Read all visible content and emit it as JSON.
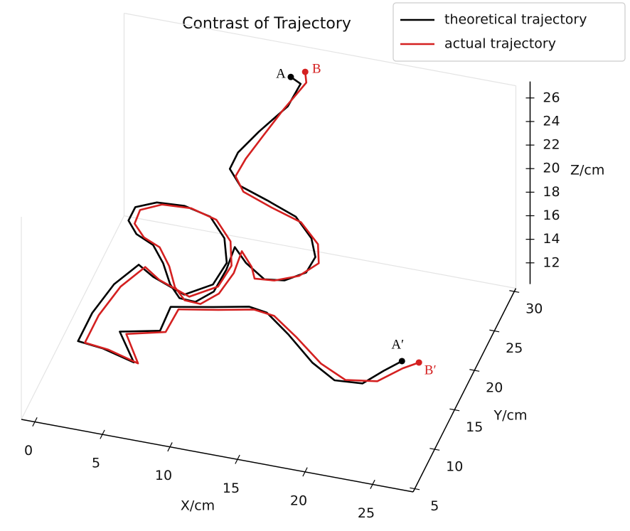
{
  "chart_data": {
    "type": "line3d",
    "title": "Contrast of Trajectory",
    "xlabel": "X/cm",
    "ylabel": "Y/cm",
    "zlabel": "Z/cm",
    "xlim": [
      -1,
      28
    ],
    "ylim": [
      4.6,
      30.4
    ],
    "zlim": [
      10.2,
      27.4
    ],
    "xticks": [
      0,
      5,
      10,
      15,
      20,
      25
    ],
    "yticks": [
      5,
      10,
      15,
      20,
      25,
      30
    ],
    "zticks": [
      12,
      14,
      16,
      18,
      20,
      22,
      24,
      26
    ],
    "legend": "upper right",
    "series": [
      {
        "name": "theoretical trajectory",
        "color": "#000000",
        "start_label": "A",
        "end_label": "A′",
        "x": [
          11.9,
          12.6,
          12.3,
          10.8,
          9.7,
          9.3,
          10.2,
          12.3,
          14.6,
          16.2,
          16.9,
          16.6,
          15.2,
          13.8,
          12.0,
          10.7,
          10.9,
          10.8,
          9.9,
          8.7,
          7.6,
          6.4,
          5.1,
          3.6,
          2.6,
          2.6,
          3.9,
          5.9,
          8.0,
          9.7,
          10.7,
          10.5,
          8.9,
          6.2,
          4.8,
          3.8,
          3.3,
          2.9,
          4.8,
          7.0,
          5.4,
          8.5,
          8.4,
          11.3,
          13.7,
          15.1,
          16.9,
          19.1,
          20.8,
          22.4,
          23.2,
          23.9
        ],
        "y": [
          28.5,
          28.6,
          26.4,
          24.2,
          22.7,
          22.0,
          21.6,
          21.2,
          20.6,
          19.1,
          17.7,
          16.4,
          15.7,
          15.4,
          16.9,
          18.5,
          15.7,
          12.9,
          11.3,
          11.4,
          12.8,
          15.1,
          17.0,
          17.9,
          19.3,
          21.0,
          22.0,
          22.2,
          21.5,
          19.3,
          16.5,
          13.7,
          11.9,
          13.3,
          14.4,
          11.6,
          7.8,
          5.6,
          5.3,
          5.7,
          7.6,
          7.2,
          10.2,
          11.1,
          11.9,
          11.6,
          10.9,
          9.5,
          9.3,
          10.9,
          13.5,
          15.7
        ],
        "z": [
          26,
          25.5,
          25,
          24,
          23,
          22,
          21,
          20.5,
          20,
          19.5,
          19,
          18.5,
          18,
          18,
          18,
          18,
          18,
          18,
          18,
          18,
          18,
          18,
          18,
          18,
          18,
          18,
          18,
          18,
          18,
          18,
          18,
          18,
          18,
          18,
          18,
          18,
          18,
          17,
          17,
          16,
          17,
          18,
          18,
          18,
          18,
          18,
          17,
          16,
          15,
          14,
          13.5,
          13
        ]
      },
      {
        "name": "actual trajectory",
        "color": "#d42020",
        "start_label": "B",
        "end_label": "B′",
        "x": [
          12.7,
          12.9,
          12.0,
          11.2,
          10.4,
          9.9,
          10.6,
          12.8,
          15.1,
          16.8,
          17.3,
          16.2,
          14.6,
          13.2,
          12.6,
          11.4,
          11.6,
          11.3,
          10.4,
          9.2,
          8.1,
          7.0,
          5.7,
          4.3,
          3.2,
          3.1,
          4.4,
          6.5,
          8.6,
          10.3,
          11.2,
          11.0,
          9.4,
          6.8,
          5.4,
          4.4,
          3.9,
          3.5,
          5.3,
          7.4,
          6.0,
          9.0,
          9.1,
          11.8,
          14.2,
          15.8,
          17.6,
          19.8,
          21.6,
          23.4,
          24.4,
          25.1
        ],
        "y": [
          29.4,
          29.0,
          26.0,
          24.0,
          22.3,
          21.4,
          21.0,
          20.6,
          20.2,
          18.7,
          17.2,
          16.0,
          15.2,
          15.0,
          16.3,
          17.9,
          15.2,
          12.5,
          10.9,
          11.0,
          12.3,
          14.6,
          16.6,
          17.4,
          18.8,
          20.5,
          21.6,
          21.8,
          21.0,
          18.8,
          16.0,
          13.3,
          11.5,
          12.8,
          14.0,
          11.2,
          7.4,
          5.3,
          5.0,
          5.4,
          7.2,
          6.9,
          9.8,
          10.6,
          11.4,
          11.1,
          10.5,
          9.3,
          9.3,
          11.2,
          14.2,
          15.9
        ],
        "z": [
          26,
          25.4,
          24.8,
          23.9,
          22.9,
          21.9,
          21,
          20.4,
          19.9,
          19.4,
          18.9,
          18.4,
          18.2,
          18.2,
          18.2,
          18.2,
          18.2,
          18.2,
          18.2,
          18.2,
          18.2,
          18.2,
          18.2,
          18.2,
          18.2,
          18.2,
          18.2,
          18.2,
          18.2,
          18.2,
          18.2,
          18.2,
          18.2,
          18.2,
          18.2,
          18.2,
          18.2,
          17.2,
          17.2,
          16.2,
          17.2,
          18.2,
          18.2,
          18.2,
          18.2,
          18.2,
          17.2,
          16.2,
          15.2,
          14.2,
          13.5,
          13
        ]
      }
    ]
  }
}
